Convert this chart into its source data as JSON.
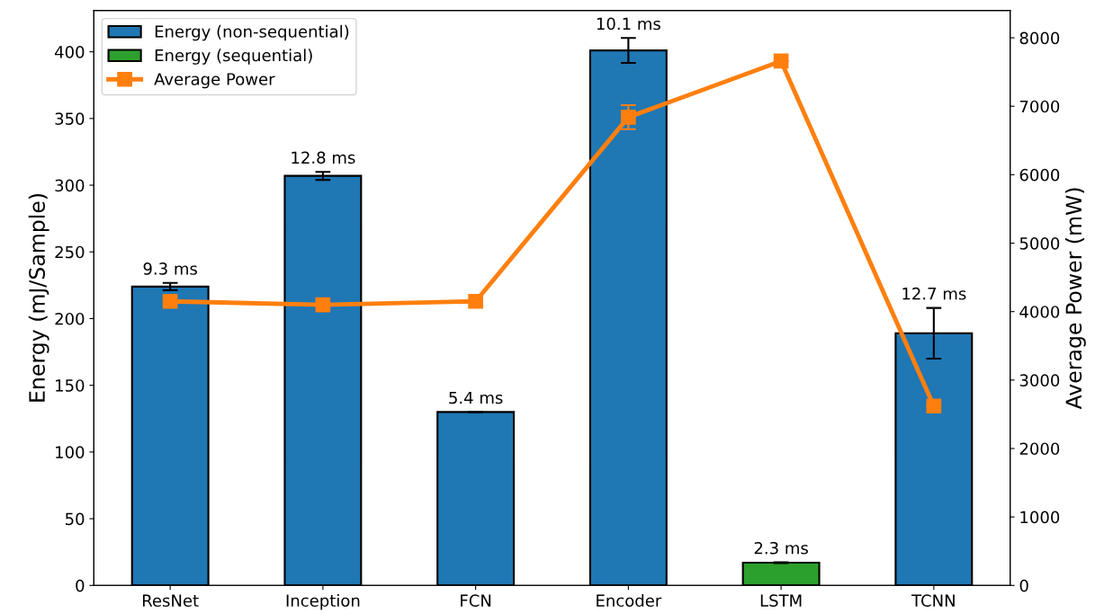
{
  "chart_data": {
    "type": "bar",
    "categories": [
      "ResNet",
      "Inception",
      "FCN",
      "Encoder",
      "LSTM",
      "TCNN"
    ],
    "ylabel": "Energy (mJ/Sample)",
    "y2label": "Average Power (mW)",
    "ylim": [
      0,
      431
    ],
    "yticks": [
      0,
      50,
      100,
      150,
      200,
      250,
      300,
      350,
      400
    ],
    "y2lim": [
      0,
      8400
    ],
    "y2ticks": [
      0,
      1000,
      2000,
      3000,
      4000,
      5000,
      6000,
      7000,
      8000
    ],
    "legend": "top left",
    "grid": false,
    "annotations": [
      {
        "text": "9.3 ms",
        "x": "ResNet",
        "y": 226.7
      },
      {
        "text": "12.8 ms",
        "x": "Inception",
        "y": 310
      },
      {
        "text": "5.4 ms",
        "x": "FCN",
        "y": 130
      },
      {
        "text": "10.1 ms",
        "x": "Encoder",
        "y": 410.3
      },
      {
        "text": "2.3 ms",
        "x": "LSTM",
        "y": 17.3
      },
      {
        "text": "12.7 ms",
        "x": "TCNN",
        "y": 208
      }
    ],
    "series": [
      {
        "name": "Energy (non-sequential)",
        "color": "#1f77b4",
        "values": [
          224,
          307,
          130,
          401,
          null,
          189
        ],
        "errors": [
          2.7,
          3,
          null,
          9.3,
          null,
          19
        ]
      },
      {
        "name": "Energy (sequential)",
        "color": "#2ca02c",
        "values": [
          null,
          null,
          null,
          null,
          17,
          null
        ],
        "errors": [
          null,
          null,
          null,
          null,
          0.3,
          null
        ]
      },
      {
        "name": "Average Power",
        "type": "line",
        "axis": "y2",
        "color": "#ff7f0e",
        "marker": "square",
        "values": [
          4150,
          4100,
          4150,
          6840,
          7660,
          2620
        ],
        "errors": [
          null,
          null,
          null,
          175,
          null,
          null
        ]
      }
    ]
  }
}
